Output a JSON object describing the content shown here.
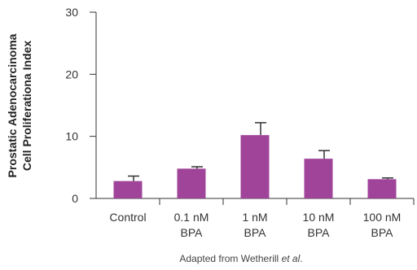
{
  "chart_data": {
    "type": "bar",
    "ylabel_lines": [
      "Prostatic Adenocarcinoma",
      "Cell Proliferationa Index"
    ],
    "xlabel": "",
    "ylim": [
      0,
      30
    ],
    "yticks": [
      "0",
      "10",
      "20",
      "30"
    ],
    "categories": [
      [
        "Control"
      ],
      [
        "0.1 nM",
        "BPA"
      ],
      [
        "1 nM",
        "BPA"
      ],
      [
        "10 nM",
        "BPA"
      ],
      [
        "100 nM",
        "BPA"
      ]
    ],
    "values": [
      2.8,
      4.8,
      10.2,
      6.4,
      3.1
    ],
    "errors": [
      0.8,
      0.3,
      2.0,
      1.3,
      0.2
    ],
    "bar_color": "#a0449a",
    "axis_color": "#333333",
    "grid": false
  },
  "source_note": {
    "prefix": "Adapted from Wetherill ",
    "italic": "et al",
    "suffix": "."
  }
}
